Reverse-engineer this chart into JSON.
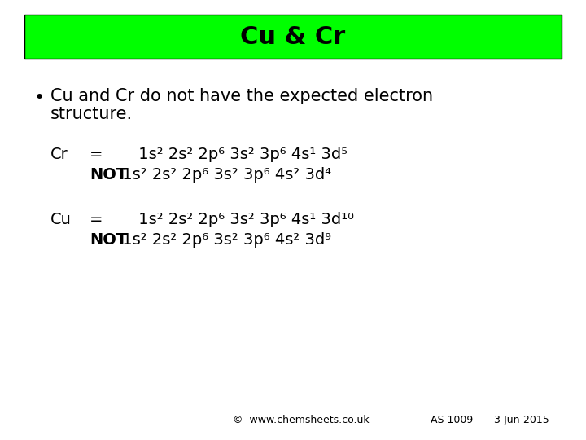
{
  "title": "Cu & Cr",
  "title_bg_color": "#00ff00",
  "title_fontsize": 22,
  "bg_color": "#ffffff",
  "bullet_text_line1": "Cu and Cr do not have the expected electron",
  "bullet_text_line2": "structure.",
  "bullet_fontsize": 15,
  "cr_label": "Cr",
  "cr_eq": "=       1s² 2s² 2p⁶ 3s² 3p⁶ 4s¹ 3d⁵",
  "cr_not_rest": " 1s² 2s² 2p⁶ 3s² 3p⁶ 4s² 3d⁴",
  "cu_label": "Cu",
  "cu_eq": "=       1s² 2s² 2p⁶ 3s² 3p⁶ 4s¹ 3d¹⁰",
  "cu_not_rest": " 1s² 2s² 2p⁶ 3s² 3p⁶ 4s² 3d⁹",
  "not_bold": "NOT",
  "footer_left": "©  www.chemsheets.co.uk",
  "footer_mid": "AS 1009",
  "footer_right": "3-Jun-2015",
  "body_fontsize": 14,
  "footer_fontsize": 9
}
